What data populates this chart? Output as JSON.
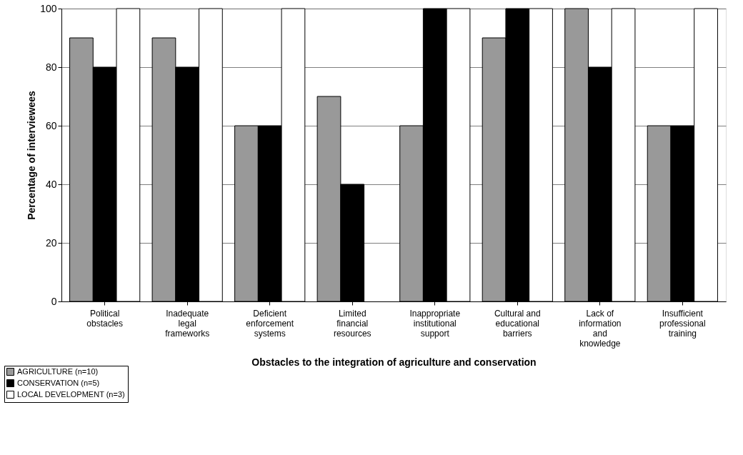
{
  "chart_data": {
    "type": "bar",
    "xlabel": "Obstacles to the integration of agriculture and conservation",
    "ylabel": "Percentage of interviewees",
    "categories": [
      "Political obstacles",
      "Inadequate legal frameworks",
      "Deficient enforcement systems",
      "Limited financial resources",
      "Inappropriate institutional support",
      "Cultural and educational barriers",
      "Lack of information and knowledge",
      "Insufficient professional training"
    ],
    "series": [
      {
        "name": "AGRICULTURE (n=10)",
        "color": "#999999",
        "values": [
          90,
          90,
          60,
          70,
          60,
          90,
          100,
          60
        ]
      },
      {
        "name": "CONSERVATION (n=5)",
        "color": "#000000",
        "values": [
          80,
          80,
          60,
          40,
          100,
          100,
          80,
          60
        ]
      },
      {
        "name": "LOCAL DEVELOPMENT (n=3)",
        "color": "#ffffff",
        "values": [
          100,
          100,
          100,
          0,
          100,
          100,
          100,
          100
        ]
      }
    ],
    "ylim": [
      0,
      100
    ],
    "yticks": [
      0,
      20,
      40,
      60,
      80,
      100
    ],
    "grid": "y",
    "legend": "bottom left"
  }
}
